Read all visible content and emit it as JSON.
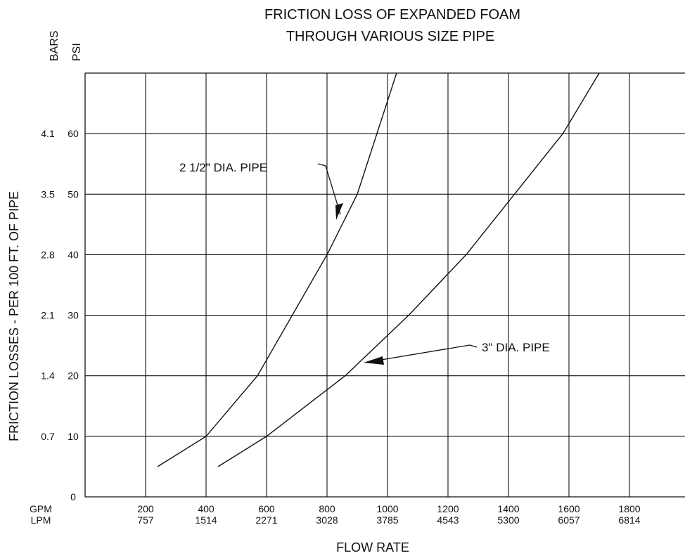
{
  "chart_data": {
    "type": "line",
    "title_line1": "FRICTION LOSS OF EXPANDED FOAM",
    "title_line2": "THROUGH VARIOUS SIZE PIPE",
    "xlabel": "FLOW RATE",
    "ylabel": "FRICTION LOSSES - PER 100 FT. OF PIPE",
    "x_unit_primary": "GPM",
    "x_unit_secondary": "LPM",
    "y_unit_primary": "PSI",
    "y_unit_secondary": "BARS",
    "xlim": [
      0,
      2000
    ],
    "ylim": [
      0,
      70
    ],
    "grid": true,
    "x_ticks": [
      {
        "gpm": 200,
        "gpm_label": "200",
        "lpm_label": "757"
      },
      {
        "gpm": 400,
        "gpm_label": "400",
        "lpm_label": "1514"
      },
      {
        "gpm": 600,
        "gpm_label": "600",
        "lpm_label": "2271"
      },
      {
        "gpm": 800,
        "gpm_label": "800",
        "lpm_label": "3028"
      },
      {
        "gpm": 1000,
        "gpm_label": "1000",
        "lpm_label": "3785"
      },
      {
        "gpm": 1200,
        "gpm_label": "1200",
        "lpm_label": "4543"
      },
      {
        "gpm": 1400,
        "gpm_label": "1400",
        "lpm_label": "5300"
      },
      {
        "gpm": 1600,
        "gpm_label": "1600",
        "lpm_label": "6057"
      },
      {
        "gpm": 1800,
        "gpm_label": "1800",
        "lpm_label": "6814"
      }
    ],
    "y_ticks": [
      {
        "psi": 0,
        "psi_label": "0",
        "bar_label": ""
      },
      {
        "psi": 10,
        "psi_label": "10",
        "bar_label": "0.7"
      },
      {
        "psi": 20,
        "psi_label": "20",
        "bar_label": "1.4"
      },
      {
        "psi": 30,
        "psi_label": "30",
        "bar_label": "2.1"
      },
      {
        "psi": 40,
        "psi_label": "40",
        "bar_label": "2.8"
      },
      {
        "psi": 50,
        "psi_label": "50",
        "bar_label": "3.5"
      },
      {
        "psi": 60,
        "psi_label": "60",
        "bar_label": "4.1"
      }
    ],
    "series": [
      {
        "name": "2 1/2\" DIA. PIPE",
        "x": [
          240,
          400,
          570,
          800,
          900,
          1030
        ],
        "y": [
          5,
          10,
          20,
          40,
          50,
          70
        ]
      },
      {
        "name": "3\" DIA. PIPE",
        "x": [
          440,
          600,
          860,
          1070,
          1260,
          1580,
          1700
        ],
        "y": [
          5,
          10,
          20,
          30,
          40,
          60,
          70
        ]
      }
    ]
  }
}
